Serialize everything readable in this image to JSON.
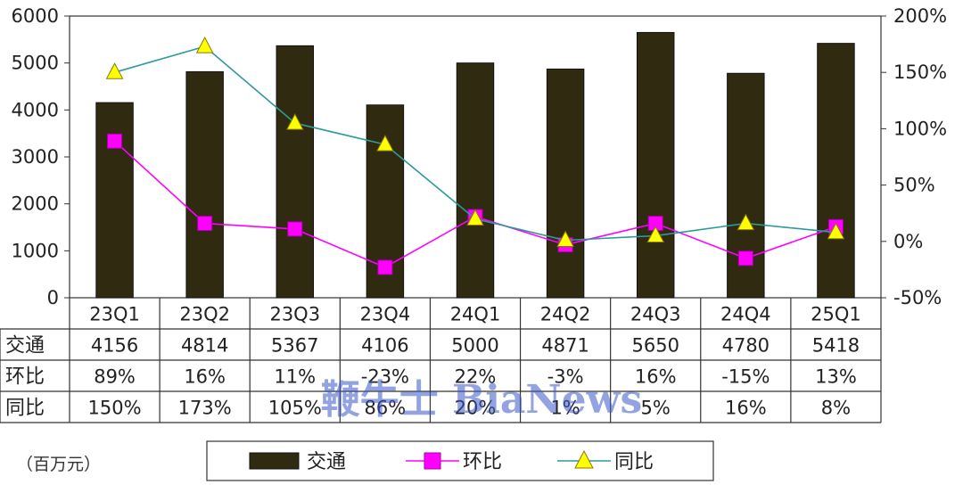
{
  "chart_data": {
    "type": "bar",
    "categories": [
      "23Q1",
      "23Q2",
      "23Q3",
      "23Q4",
      "24Q1",
      "24Q2",
      "24Q3",
      "24Q4",
      "25Q1"
    ],
    "series": [
      {
        "name": "交通",
        "kind": "bar",
        "axis": "left",
        "color": "#2f2a10",
        "values": [
          4156,
          4814,
          5367,
          4106,
          5000,
          4871,
          5650,
          4780,
          5418
        ]
      },
      {
        "name": "环比",
        "kind": "line",
        "axis": "right",
        "color": "#ff00ff",
        "marker": "square",
        "values": [
          89,
          16,
          11,
          -23,
          22,
          -3,
          16,
          -15,
          13
        ]
      },
      {
        "name": "同比",
        "kind": "line",
        "axis": "right",
        "color": "#2e9a9a",
        "marker": "triangle",
        "marker_color": "#ffff00",
        "values": [
          150,
          173,
          105,
          86,
          20,
          1,
          5,
          16,
          8
        ]
      }
    ],
    "ylim_left": [
      0,
      6000
    ],
    "yticks_left": [
      "0",
      "1000",
      "2000",
      "3000",
      "4000",
      "5000",
      "6000"
    ],
    "ylim_right": [
      -50,
      200
    ],
    "yticks_right": [
      "-50%",
      "0%",
      "50%",
      "100%",
      "150%",
      "200%"
    ],
    "table_rows": [
      {
        "label": "交通",
        "cells": [
          "4156",
          "4814",
          "5367",
          "4106",
          "5000",
          "4871",
          "5650",
          "4780",
          "5418"
        ]
      },
      {
        "label": "环比",
        "cells": [
          "89%",
          "16%",
          "11%",
          "-23%",
          "22%",
          "-3%",
          "16%",
          "-15%",
          "13%"
        ]
      },
      {
        "label": "同比",
        "cells": [
          "150%",
          "173%",
          "105%",
          "86%",
          "20%",
          "1%",
          "5%",
          "16%",
          "8%"
        ]
      }
    ],
    "unit_label": "（百万元）",
    "legend": [
      {
        "name": "交通",
        "symbol": "bar"
      },
      {
        "name": "环比",
        "symbol": "square-line"
      },
      {
        "name": "同比",
        "symbol": "triangle-line"
      }
    ],
    "legend_position": "bottom",
    "grid": false
  },
  "watermark": "鞭牛士 BiaNews"
}
